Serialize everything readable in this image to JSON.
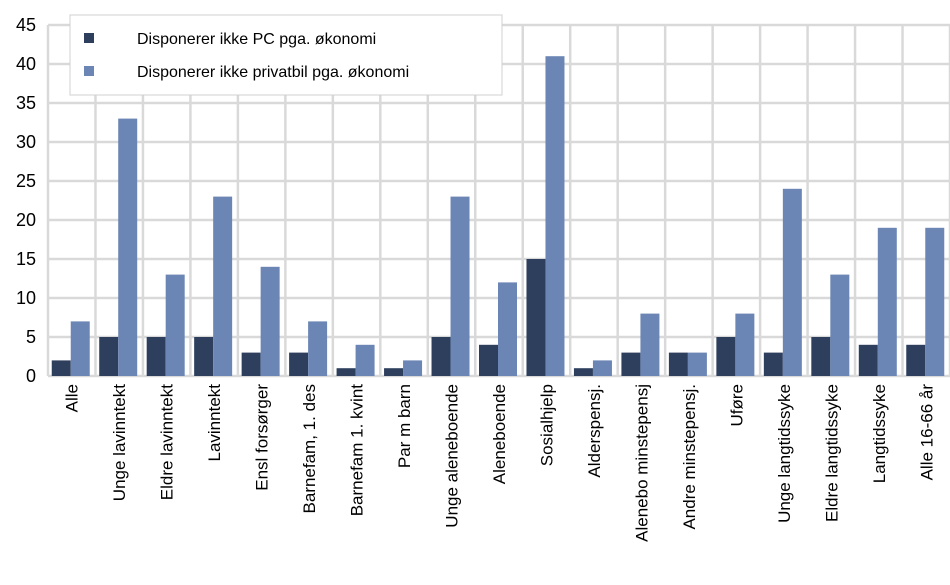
{
  "chart_data": {
    "type": "bar",
    "categories": [
      "Alle",
      "Unge lavinntekt",
      "Eldre lavinntekt",
      "Lavinntekt",
      "Ensl forsørger",
      "Barnefam, 1. des",
      "Barnefam 1. kvint",
      "Par m barn",
      "Unge aleneboende",
      "Aleneboende",
      "Sosialhjelp",
      "Alderspensj.",
      "Alenebo minstepensj",
      "Andre minstepensj.",
      "Uføre",
      "Unge langtidssyke",
      "Eldre langtidssyke",
      "Langtidssyke",
      "Alle 16-66 år"
    ],
    "series": [
      {
        "name": "Disponerer ikke PC pga. økonomi",
        "color": "#2e3f5e",
        "values": [
          2,
          5,
          5,
          5,
          3,
          3,
          1,
          1,
          5,
          4,
          15,
          1,
          3,
          3,
          5,
          3,
          5,
          4,
          4
        ]
      },
      {
        "name": "Disponerer ikke privatbil pga. økonomi",
        "color": "#6b86b4",
        "values": [
          7,
          33,
          13,
          23,
          14,
          7,
          4,
          2,
          23,
          12,
          41,
          2,
          8,
          3,
          8,
          24,
          13,
          19,
          19
        ]
      }
    ],
    "ylim": [
      0,
      45
    ],
    "yticks": [
      0,
      5,
      10,
      15,
      20,
      25,
      30,
      35,
      40,
      45
    ],
    "grid": true,
    "legend_position": "top-left",
    "xlabel": "",
    "ylabel": ""
  }
}
